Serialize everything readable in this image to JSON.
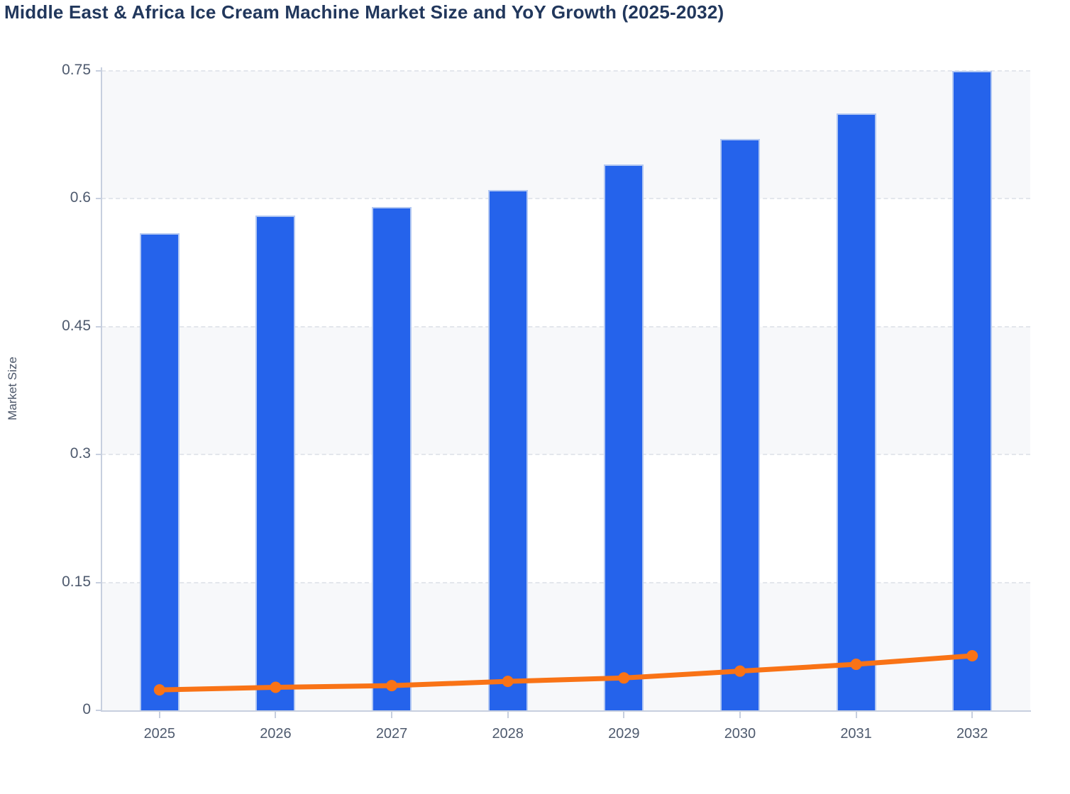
{
  "page": {
    "title": "Middle East & Africa Ice Cream Machine Market Size and YoY Growth (2025-2032)"
  },
  "colors": {
    "bar_blue": "#2563eb",
    "bar_edge": "#b3c8f2",
    "line_orange": "#f97316",
    "title_text": "#21375c",
    "axis_text": "#4e5a6e",
    "axis_line": "#c7cfdf",
    "gridline": "#e3e6ec",
    "plot_band": "#f7f8fa",
    "background": "#ffffff"
  },
  "chart_data": {
    "type": "combo",
    "title": "Middle East & Africa Ice Cream Machine Market Size and YoY Growth (2025-2032)",
    "xlabel": "",
    "ylabel": "Market Size",
    "categories": [
      "2025",
      "2026",
      "2027",
      "2028",
      "2029",
      "2030",
      "2031",
      "2032"
    ],
    "series": [
      {
        "name": "Market Size",
        "type": "bar",
        "color": "#2563eb",
        "values": [
          0.56,
          0.58,
          0.59,
          0.61,
          0.64,
          0.67,
          0.7,
          0.75
        ]
      },
      {
        "name": "YoY Growth",
        "type": "line",
        "color": "#f97316",
        "values": [
          0.024,
          0.027,
          0.029,
          0.034,
          0.038,
          0.046,
          0.054,
          0.064
        ],
        "note": "line with round markers plotted against the left Market Size axis scale"
      }
    ],
    "ylim": [
      0,
      0.75
    ],
    "yticks": [
      0,
      0.15,
      0.3,
      0.45,
      0.6,
      0.75
    ],
    "ytick_labels": [
      "0",
      "0.15",
      "0.3",
      "0.45",
      "0.6",
      "0.75"
    ],
    "grid": "horizontal dashed lines at each y tick",
    "plot_bands": "alternating horizontal light-gray bands between gridlines (0-0.15, 0.3-0.45, 0.6-0.75 shaded)",
    "legend": "none"
  }
}
